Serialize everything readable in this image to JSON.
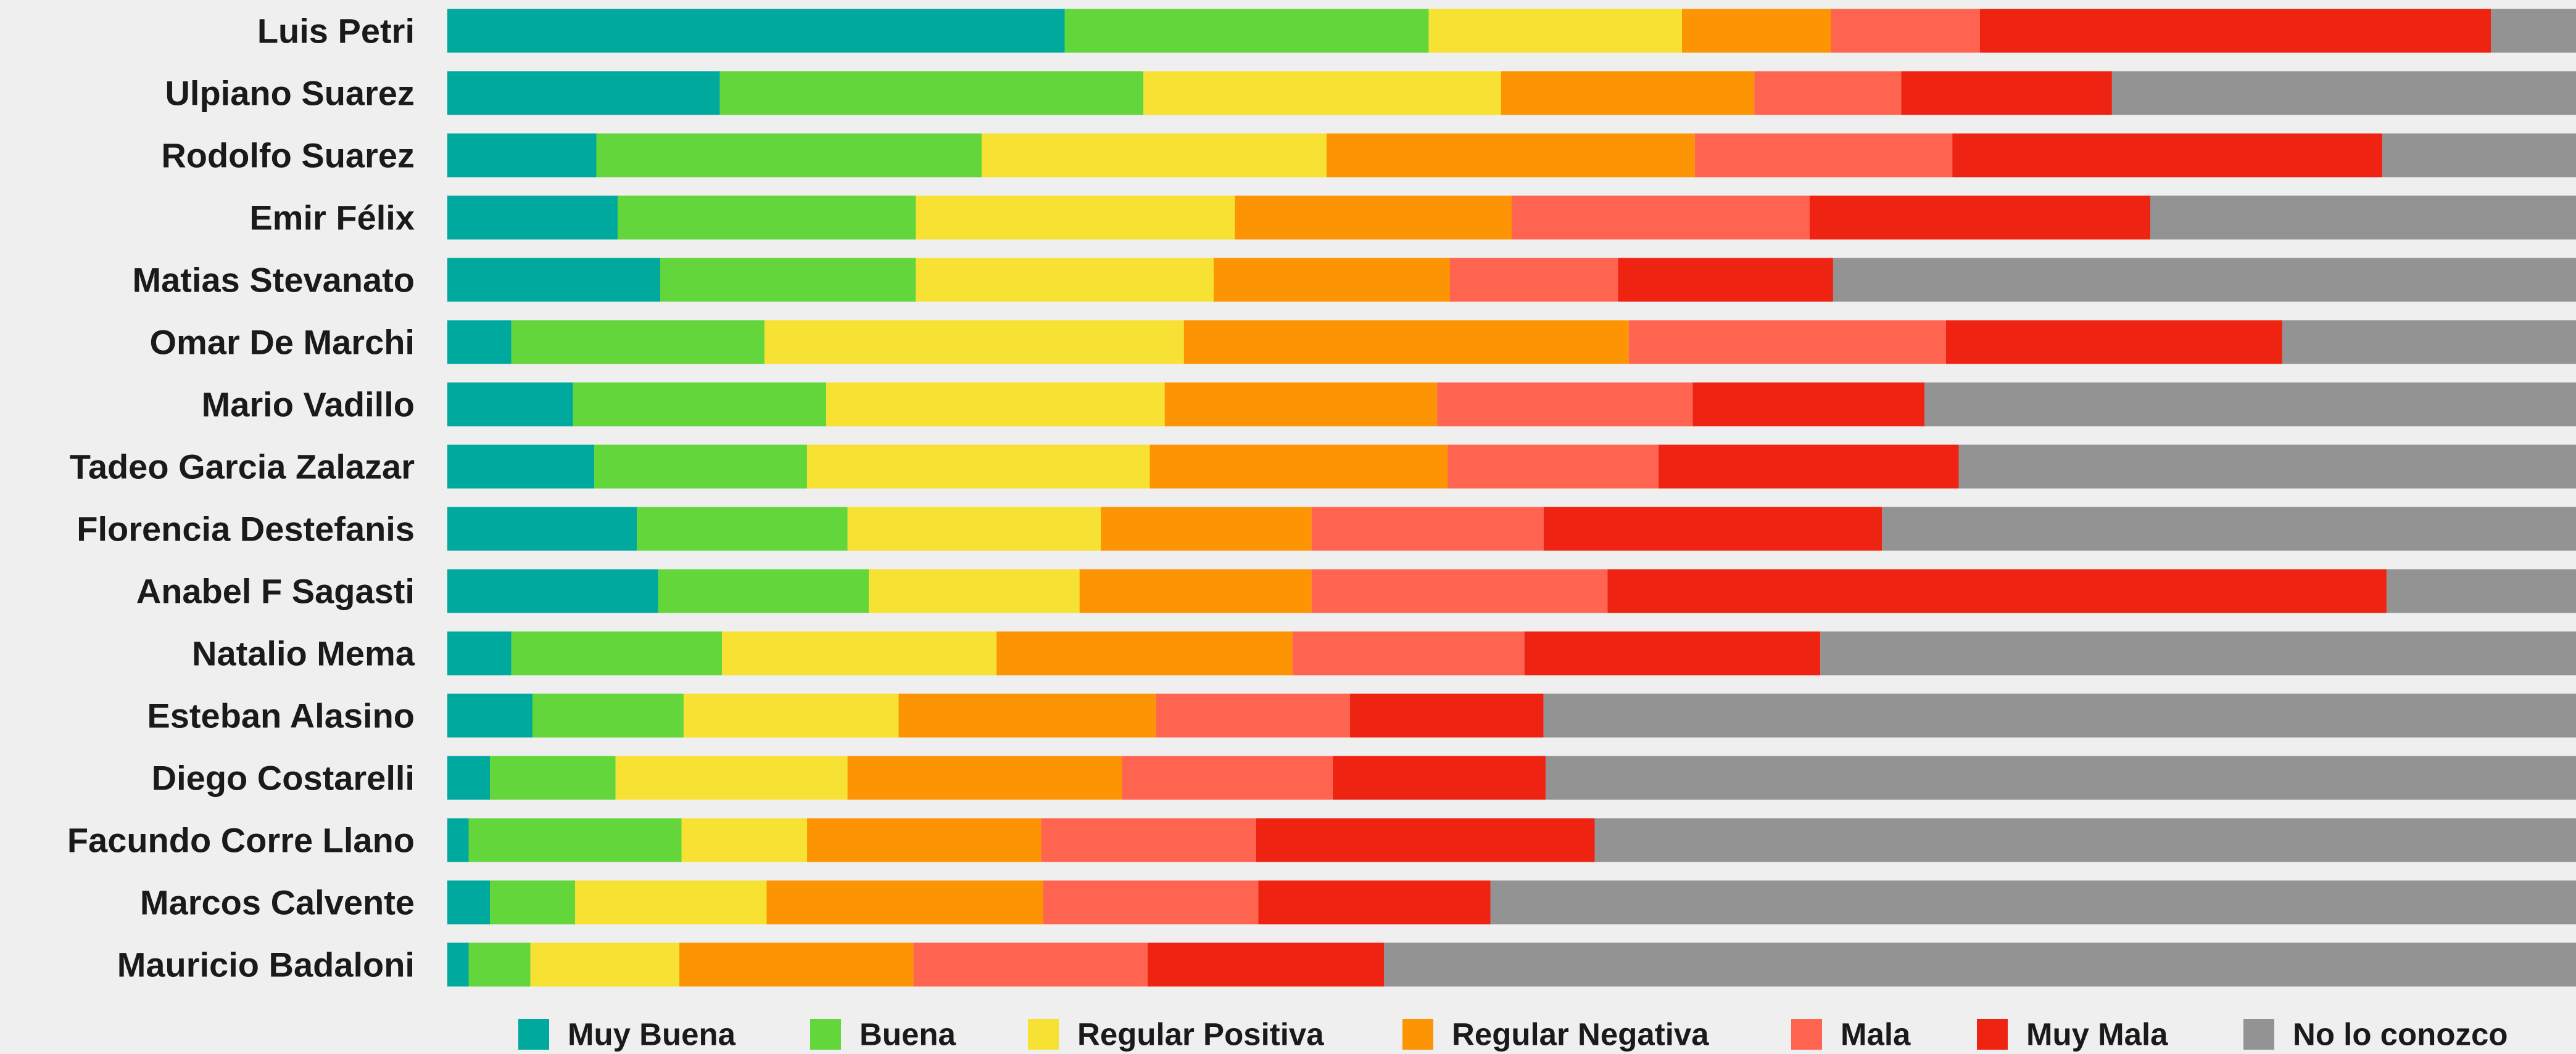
{
  "chart_data": {
    "type": "bar",
    "orientation": "horizontal",
    "stacked": true,
    "percent": true,
    "title": "",
    "xlabel": "",
    "ylabel": "",
    "xlim": [
      0,
      100
    ],
    "grid": false,
    "legend_position": "bottom",
    "categories": [
      "Luis Petri",
      "Ulpiano Suarez",
      "Rodolfo Suarez",
      "Emir Félix",
      "Matias Stevanato",
      "Omar De Marchi",
      "Mario Vadillo",
      "Tadeo Garcia Zalazar",
      "Florencia Destefanis",
      "Anabel F Sagasti",
      "Natalio Mema",
      "Esteban Alasino",
      "Diego Costarelli",
      "Facundo Corre Llano",
      "Marcos Calvente",
      "Mauricio Badaloni"
    ],
    "series": [
      {
        "name": "Muy Buena",
        "color": "#00a99d",
        "values": [
          29.0,
          12.8,
          7.0,
          8.0,
          10.0,
          3.0,
          5.9,
          6.9,
          8.9,
          9.9,
          3.0,
          4.0,
          2.0,
          1.0,
          2.0,
          1.0
        ]
      },
      {
        "name": "Buena",
        "color": "#62d63a",
        "values": [
          17.1,
          19.9,
          18.1,
          14.0,
          12.0,
          11.9,
          11.9,
          10.0,
          9.9,
          9.9,
          9.9,
          7.1,
          5.9,
          10.0,
          4.0,
          2.9
        ]
      },
      {
        "name": "Regular Positiva",
        "color": "#f7e233",
        "values": [
          11.9,
          16.8,
          16.2,
          15.0,
          14.0,
          19.7,
          15.9,
          16.1,
          11.9,
          9.9,
          12.9,
          10.1,
          10.9,
          5.9,
          9.0,
          7.0
        ]
      },
      {
        "name": "Regular Negativa",
        "color": "#fc9403",
        "values": [
          7.0,
          11.9,
          17.3,
          13.0,
          11.1,
          20.9,
          12.8,
          14.0,
          9.9,
          10.9,
          13.9,
          12.1,
          12.9,
          11.0,
          13.0,
          11.0
        ]
      },
      {
        "name": "Mala",
        "color": "#ff6450",
        "values": [
          7.0,
          6.9,
          12.1,
          14.0,
          7.9,
          14.9,
          12.0,
          9.9,
          10.9,
          13.9,
          10.9,
          9.1,
          9.9,
          10.1,
          10.1,
          11.0
        ]
      },
      {
        "name": "Muy Mala",
        "color": "#ef2311",
        "values": [
          24.0,
          9.9,
          20.2,
          16.0,
          10.1,
          15.8,
          10.9,
          14.1,
          15.9,
          36.6,
          13.9,
          9.1,
          10.0,
          15.9,
          10.9,
          11.1
        ]
      },
      {
        "name": "No lo conozco",
        "color": "#939393",
        "values": [
          4.0,
          21.8,
          9.1,
          20.0,
          34.9,
          13.8,
          30.6,
          29.0,
          32.6,
          8.9,
          35.5,
          48.5,
          48.4,
          46.1,
          51.0,
          56.0
        ]
      }
    ]
  }
}
